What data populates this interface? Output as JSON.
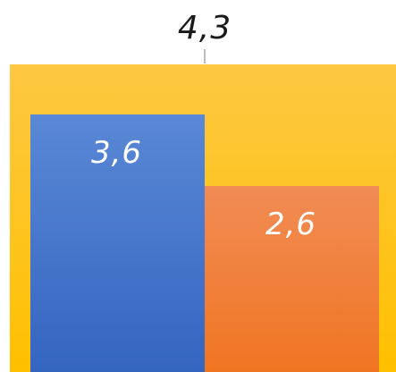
{
  "chart_data": {
    "type": "bar",
    "title": "",
    "xlabel": "",
    "ylabel": "",
    "ylim": [
      0,
      4.3
    ],
    "total": {
      "value": 4.3,
      "label": "4,3"
    },
    "categories": [
      "",
      ""
    ],
    "values": [
      3.6,
      2.6
    ],
    "value_labels": [
      "3,6",
      "2,6"
    ],
    "colors": {
      "total_top": "#FDC842",
      "total_bottom": "#FFC000",
      "bar1_top": "#5A88D6",
      "bar1_bottom": "#3465C0",
      "bar2_top": "#F18C55",
      "bar2_bottom": "#F07522",
      "total_label": "#1a1a1a",
      "bar_label": "#ffffff",
      "connector": "#a6a6a6"
    },
    "grid": false,
    "legend": "none"
  }
}
